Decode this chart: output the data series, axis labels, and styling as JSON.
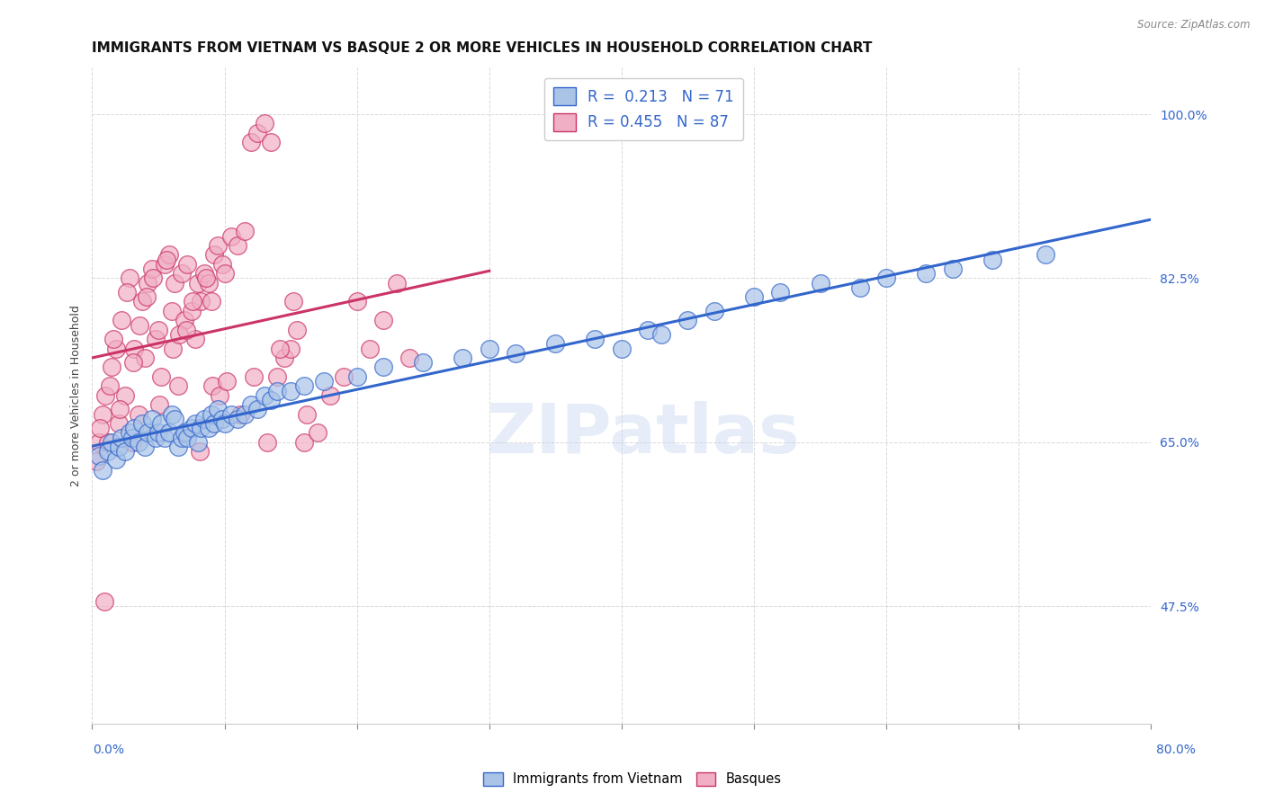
{
  "title": "IMMIGRANTS FROM VIETNAM VS BASQUE 2 OR MORE VEHICLES IN HOUSEHOLD CORRELATION CHART",
  "source": "Source: ZipAtlas.com",
  "ylabel": "2 or more Vehicles in Household",
  "yticks": [
    47.5,
    65.0,
    82.5,
    100.0
  ],
  "ytick_labels": [
    "47.5%",
    "65.0%",
    "82.5%",
    "100.0%"
  ],
  "xmin": 0.0,
  "xmax": 80.0,
  "ymin": 35.0,
  "ymax": 105.0,
  "watermark": "ZIPatlas",
  "legend_r_vietnam": "0.213",
  "legend_n_vietnam": "71",
  "legend_r_basque": "0.455",
  "legend_n_basque": "87",
  "color_vietnam": "#aac4e8",
  "color_basque": "#f0afc5",
  "color_line_vietnam": "#3366cc",
  "color_line_basque": "#cc3366",
  "vietnam_x": [
    0.5,
    0.8,
    1.2,
    1.5,
    1.8,
    2.0,
    2.2,
    2.5,
    2.8,
    3.0,
    3.2,
    3.5,
    3.8,
    4.0,
    4.2,
    4.5,
    4.8,
    5.0,
    5.2,
    5.5,
    5.8,
    6.0,
    6.2,
    6.5,
    6.8,
    7.0,
    7.2,
    7.5,
    7.8,
    8.0,
    8.2,
    8.5,
    8.8,
    9.0,
    9.2,
    9.5,
    9.8,
    10.0,
    10.5,
    11.0,
    11.5,
    12.0,
    12.5,
    13.0,
    13.5,
    14.0,
    15.0,
    16.0,
    17.5,
    20.0,
    22.0,
    25.0,
    28.0,
    30.0,
    32.0,
    35.0,
    38.0,
    40.0,
    42.0,
    43.0,
    45.0,
    47.0,
    50.0,
    52.0,
    55.0,
    58.0,
    60.0,
    63.0,
    65.0,
    68.0,
    72.0
  ],
  "vietnam_y": [
    63.5,
    62.0,
    64.0,
    65.0,
    63.2,
    64.5,
    65.5,
    64.0,
    66.0,
    65.5,
    66.5,
    65.0,
    67.0,
    64.5,
    66.0,
    67.5,
    65.5,
    66.0,
    67.0,
    65.5,
    66.0,
    68.0,
    67.5,
    64.5,
    65.5,
    66.0,
    65.5,
    66.5,
    67.0,
    65.0,
    66.5,
    67.5,
    66.5,
    68.0,
    67.0,
    68.5,
    67.5,
    67.0,
    68.0,
    67.5,
    68.0,
    69.0,
    68.5,
    70.0,
    69.5,
    70.5,
    70.5,
    71.0,
    71.5,
    72.0,
    73.0,
    73.5,
    74.0,
    75.0,
    74.5,
    75.5,
    76.0,
    75.0,
    77.0,
    76.5,
    78.0,
    79.0,
    80.5,
    81.0,
    82.0,
    81.5,
    82.5,
    83.0,
    83.5,
    84.5,
    85.0
  ],
  "basque_x": [
    0.3,
    0.5,
    0.8,
    1.0,
    1.2,
    1.5,
    1.8,
    2.0,
    2.2,
    2.5,
    2.8,
    3.0,
    3.2,
    3.5,
    3.8,
    4.0,
    4.2,
    4.5,
    4.8,
    5.0,
    5.2,
    5.5,
    5.8,
    6.0,
    6.2,
    6.5,
    6.8,
    7.0,
    7.2,
    7.5,
    7.8,
    8.0,
    8.2,
    8.5,
    8.8,
    9.0,
    9.2,
    9.5,
    9.8,
    10.0,
    10.5,
    11.0,
    11.5,
    12.0,
    12.5,
    13.0,
    13.5,
    14.0,
    14.5,
    15.0,
    15.5,
    16.0,
    17.0,
    18.0,
    19.0,
    20.0,
    21.0,
    22.0,
    23.0,
    24.0,
    0.6,
    0.9,
    1.3,
    1.6,
    2.1,
    2.6,
    3.1,
    3.6,
    4.1,
    4.6,
    5.1,
    5.6,
    6.1,
    6.6,
    7.1,
    7.6,
    8.1,
    8.6,
    9.1,
    9.6,
    10.2,
    11.2,
    12.2,
    13.2,
    14.2,
    15.2,
    16.2
  ],
  "basque_y": [
    63.0,
    65.0,
    68.0,
    70.0,
    65.0,
    73.0,
    75.0,
    67.0,
    78.0,
    70.0,
    82.5,
    65.0,
    75.0,
    68.0,
    80.0,
    74.0,
    82.0,
    83.5,
    76.0,
    77.0,
    72.0,
    84.0,
    85.0,
    79.0,
    82.0,
    71.0,
    83.0,
    78.0,
    84.0,
    79.0,
    76.0,
    82.0,
    80.0,
    83.0,
    82.0,
    80.0,
    85.0,
    86.0,
    84.0,
    83.0,
    87.0,
    86.0,
    87.5,
    97.0,
    98.0,
    99.0,
    97.0,
    72.0,
    74.0,
    75.0,
    77.0,
    65.0,
    66.0,
    70.0,
    72.0,
    80.0,
    75.0,
    78.0,
    82.0,
    74.0,
    66.5,
    48.0,
    71.0,
    76.0,
    68.5,
    81.0,
    73.5,
    77.5,
    80.5,
    82.5,
    69.0,
    84.5,
    75.0,
    76.5,
    77.0,
    80.0,
    64.0,
    82.5,
    71.0,
    70.0,
    71.5,
    68.0,
    72.0,
    65.0,
    75.0,
    80.0,
    68.0
  ],
  "grid_color": "#d8d8d8",
  "background_color": "#ffffff",
  "title_fontsize": 11,
  "axis_label_fontsize": 9,
  "tick_fontsize": 10,
  "legend_fontsize": 12,
  "watermark_fontsize": 55,
  "watermark_color": "#c8d8f0",
  "watermark_alpha": 0.45
}
